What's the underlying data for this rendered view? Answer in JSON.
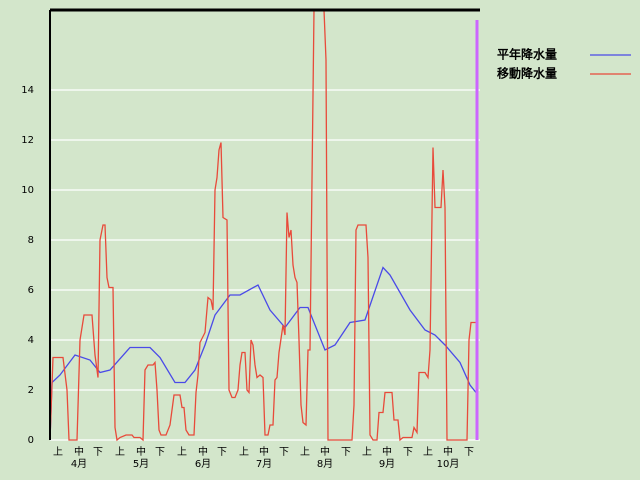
{
  "chart_data": {
    "type": "line",
    "xlim": [
      0,
      215
    ],
    "ylim": [
      0,
      17.2
    ],
    "yticks": [
      0,
      2,
      4,
      6,
      8,
      10,
      12,
      14
    ],
    "grid": true,
    "xticks": [
      {
        "value": 4,
        "label": "上"
      },
      {
        "value": 14.5,
        "label": "中"
      },
      {
        "value": 24,
        "label": "下"
      },
      {
        "value": 35,
        "label": "上"
      },
      {
        "value": 45.5,
        "label": "中"
      },
      {
        "value": 55,
        "label": "下"
      },
      {
        "value": 66,
        "label": "上"
      },
      {
        "value": 76.5,
        "label": "中"
      },
      {
        "value": 86,
        "label": "下"
      },
      {
        "value": 97,
        "label": "上"
      },
      {
        "value": 107,
        "label": "中"
      },
      {
        "value": 117,
        "label": "下"
      },
      {
        "value": 127.5,
        "label": "上"
      },
      {
        "value": 137.5,
        "label": "中"
      },
      {
        "value": 148,
        "label": "下"
      },
      {
        "value": 158.5,
        "label": "上"
      },
      {
        "value": 168.5,
        "label": "中"
      },
      {
        "value": 179,
        "label": "下"
      },
      {
        "value": 189,
        "label": "上"
      },
      {
        "value": 199,
        "label": "中"
      },
      {
        "value": 209.5,
        "label": "下"
      }
    ],
    "month_labels": [
      {
        "value": 14.5,
        "label": "4月"
      },
      {
        "value": 45.5,
        "label": "5月"
      },
      {
        "value": 76.5,
        "label": "6月"
      },
      {
        "value": 107,
        "label": "7月"
      },
      {
        "value": 137.5,
        "label": "8月"
      },
      {
        "value": 168.5,
        "label": "9月"
      },
      {
        "value": 199,
        "label": "10月"
      }
    ],
    "vline": {
      "x": 213.5,
      "color": "#cc66ff"
    },
    "series": [
      {
        "name": "平年降水量",
        "color": "#4a4ae8",
        "x": [
          0,
          1,
          5,
          12.5,
          20,
          25,
          30,
          40,
          50,
          55,
          62.5,
          67.5,
          72.5,
          77.5,
          82.5,
          90,
          95,
          104,
          110,
          117.5,
          125,
          129,
          137.5,
          142.5,
          150,
          157.5,
          166.5,
          170,
          180,
          187.5,
          192.5,
          197.5,
          205,
          210,
          214
        ],
        "values": [
          0,
          2.3,
          2.6,
          3.4,
          3.2,
          2.7,
          2.8,
          3.7,
          3.7,
          3.3,
          2.3,
          2.3,
          2.8,
          3.8,
          5.0,
          5.8,
          5.8,
          6.2,
          5.2,
          4.5,
          5.3,
          5.3,
          3.6,
          3.8,
          4.7,
          4.8,
          6.9,
          6.6,
          5.2,
          4.4,
          4.2,
          3.8,
          3.1,
          2.2,
          1.8
        ]
      },
      {
        "name": "移動降水量",
        "color": "#e84a3a",
        "x": [
          0,
          1.5,
          6.5,
          8.5,
          9.5,
          13.5,
          15,
          17,
          21,
          22.5,
          24,
          25,
          26.5,
          27.5,
          28.5,
          29.5,
          31.5,
          32.5,
          33.5,
          35,
          38,
          41,
          42,
          45,
          46.5,
          47.5,
          49,
          51.5,
          52.5,
          53.5,
          54.5,
          55.5,
          58,
          60,
          62,
          65,
          66,
          67,
          68,
          69.5,
          72,
          73,
          74,
          75,
          77.5,
          79,
          80.5,
          81.5,
          82.5,
          83.5,
          84.5,
          85.5,
          86.5,
          88.5,
          89.5,
          91,
          92.5,
          94,
          95,
          96,
          97.5,
          98.5,
          99.5,
          100.5,
          101.5,
          102.5,
          103.5,
          105,
          106.5,
          107.5,
          109,
          110,
          111.5,
          112.5,
          113.5,
          114.5,
          116.5,
          117.5,
          118.5,
          119.5,
          120.5,
          121.5,
          122.5,
          123.5,
          124.5,
          125.5,
          126.5,
          128,
          129,
          130,
          132,
          137,
          138,
          139,
          151,
          152,
          153,
          154,
          158,
          159,
          160,
          161.5,
          163.5,
          164.5,
          166.5,
          167.5,
          171,
          172,
          174,
          175,
          176.5,
          181,
          182,
          183.5,
          184.5,
          187.5,
          189,
          190,
          191.5,
          192.5,
          195.5,
          196.5,
          197.5,
          198.5,
          208.5,
          209.5,
          210.5,
          213.5
        ],
        "values": [
          0,
          3.3,
          3.3,
          2,
          0,
          0,
          4,
          5,
          5,
          3.4,
          2.5,
          8,
          8.6,
          8.6,
          6.5,
          6.1,
          6.1,
          0.5,
          0,
          0.1,
          0.2,
          0.2,
          0.1,
          0.1,
          0,
          2.8,
          3,
          3,
          3.1,
          2,
          0.4,
          0.2,
          0.2,
          0.6,
          1.8,
          1.8,
          1.3,
          1.3,
          0.4,
          0.2,
          0.2,
          1.9,
          2.6,
          3.9,
          4.3,
          5.7,
          5.6,
          5.2,
          10,
          10.5,
          11.6,
          11.9,
          8.9,
          8.8,
          2,
          1.7,
          1.7,
          2,
          3,
          3.5,
          3.5,
          2,
          1.9,
          4,
          3.8,
          3,
          2.5,
          2.6,
          2.5,
          0.2,
          0.2,
          0.6,
          0.6,
          2.4,
          2.5,
          3.5,
          4.6,
          4.2,
          9.1,
          8.1,
          8.4,
          7,
          6.5,
          6.3,
          4,
          1.4,
          0.7,
          0.6,
          3.6,
          3.6,
          17.2,
          17.2,
          15.2,
          0,
          0,
          1.4,
          8.4,
          8.6,
          8.6,
          7.3,
          0.2,
          0,
          0,
          1.1,
          1.1,
          1.9,
          1.9,
          0.8,
          0.8,
          0,
          0.1,
          0.1,
          0.5,
          0.3,
          2.7,
          2.7,
          2.5,
          3.6,
          11.7,
          9.3,
          9.3,
          10.8,
          9.3,
          0,
          0,
          4,
          4.7,
          4.7
        ]
      }
    ]
  }
}
